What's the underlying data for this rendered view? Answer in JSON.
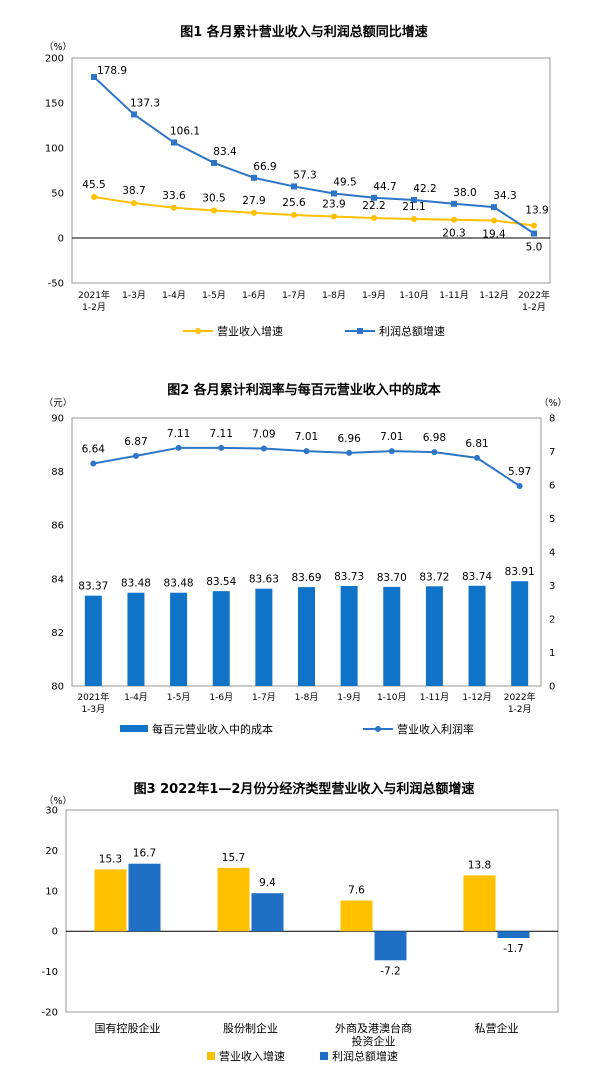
{
  "charts": [
    {
      "title": "图1  各月累计营业收入与利润总额同比增速",
      "unit_left": "（%）",
      "y_ticks": [
        "200",
        "150",
        "100",
        "50",
        "0",
        "-50"
      ],
      "categories": [
        [
          "2021年",
          "1-2月"
        ],
        [
          "1-3月"
        ],
        [
          "1-4月"
        ],
        [
          "1-5月"
        ],
        [
          "1-6月"
        ],
        [
          "1-7月"
        ],
        [
          "1-8月"
        ],
        [
          "1-9月"
        ],
        [
          "1-10月"
        ],
        [
          "1-11月"
        ],
        [
          "1-12月"
        ],
        [
          "2022年",
          "1-2月"
        ]
      ],
      "revenue_labels": [
        "45.5",
        "38.7",
        "33.6",
        "30.5",
        "27.9",
        "25.6",
        "23.9",
        "22.2",
        "21.1",
        "20.3",
        "19.4",
        "13.9"
      ],
      "profit_labels": [
        "178.9",
        "137.3",
        "106.1",
        "83.4",
        "66.9",
        "57.3",
        "49.5",
        "44.7",
        "42.2",
        "38.0",
        "34.3",
        "5.0"
      ],
      "legend": [
        "营业收入增速",
        "利润总额增速"
      ]
    },
    {
      "title": "图2  各月累计利润率与每百元营业收入中的成本",
      "unit_left": "（元）",
      "unit_right": "（%）",
      "y_ticks_left": [
        "90",
        "88",
        "86",
        "84",
        "82",
        "80"
      ],
      "y_ticks_right": [
        "8",
        "7",
        "6",
        "5",
        "4",
        "3",
        "2",
        "1",
        "0"
      ],
      "categories": [
        [
          "2021年",
          "1-3月"
        ],
        [
          "1-4月"
        ],
        [
          "1-5月"
        ],
        [
          "1-6月"
        ],
        [
          "1-7月"
        ],
        [
          "1-8月"
        ],
        [
          "1-9月"
        ],
        [
          "1-10月"
        ],
        [
          "1-11月"
        ],
        [
          "1-12月"
        ],
        [
          "2022年",
          "1-2月"
        ]
      ],
      "cost_labels": [
        "83.37",
        "83.48",
        "83.48",
        "83.54",
        "83.63",
        "83.69",
        "83.73",
        "83.70",
        "83.72",
        "83.74",
        "83.91"
      ],
      "margin_labels": [
        "6.64",
        "6.87",
        "7.11",
        "7.11",
        "7.09",
        "7.01",
        "6.96",
        "7.01",
        "6.98",
        "6.81",
        "5.97"
      ],
      "legend": [
        "每百元营业收入中的成本",
        "营业收入利润率"
      ]
    },
    {
      "title": "图3  2022年1—2月份分经济类型营业收入与利润总额增速",
      "unit_left": "（%）",
      "y_ticks": [
        "30",
        "20",
        "10",
        "0",
        "-10",
        "-20"
      ],
      "categories": [
        [
          "国有控股企业"
        ],
        [
          "股份制企业"
        ],
        [
          "外商及港澳台商",
          "投资企业"
        ],
        [
          "私营企业"
        ]
      ],
      "revenue_labels": [
        "15.3",
        "15.7",
        "7.6",
        "13.8"
      ],
      "profit_labels": [
        "16.7",
        "9.4",
        "-7.2",
        "-1.7"
      ],
      "legend": [
        "营业收入增速",
        "利润总额增速"
      ]
    }
  ],
  "colors": {
    "revenue": "#FFC000",
    "profit": "#1F6FC5",
    "bar": "#0F73C7",
    "line": "#2E75C8"
  },
  "chart_data": [
    {
      "type": "line",
      "title": "图1  各月累计营业收入与利润总额同比增速",
      "ylabel": "（%）",
      "ylim": [
        -50,
        200
      ],
      "x": [
        "2021年1-2月",
        "1-3月",
        "1-4月",
        "1-5月",
        "1-6月",
        "1-7月",
        "1-8月",
        "1-9月",
        "1-10月",
        "1-11月",
        "1-12月",
        "2022年1-2月"
      ],
      "series": [
        {
          "name": "营业收入增速",
          "values": [
            45.5,
            38.7,
            33.6,
            30.5,
            27.9,
            25.6,
            23.9,
            22.2,
            21.1,
            20.3,
            19.4,
            13.9
          ]
        },
        {
          "name": "利润总额增速",
          "values": [
            178.9,
            137.3,
            106.1,
            83.4,
            66.9,
            57.3,
            49.5,
            44.7,
            42.2,
            38.0,
            34.3,
            5.0
          ]
        }
      ],
      "legend": "bottom"
    },
    {
      "type": "bar",
      "title": "图2  各月累计利润率与每百元营业收入中的成本",
      "ylabel": "（元）",
      "ylabel_right": "（%）",
      "ylim": [
        80,
        90
      ],
      "ylim_right": [
        0,
        8
      ],
      "categories": [
        "2021年1-3月",
        "1-4月",
        "1-5月",
        "1-6月",
        "1-7月",
        "1-8月",
        "1-9月",
        "1-10月",
        "1-11月",
        "1-12月",
        "2022年1-2月"
      ],
      "series": [
        {
          "name": "每百元营业收入中的成本",
          "type": "bar",
          "axis": "left",
          "values": [
            83.37,
            83.48,
            83.48,
            83.54,
            83.63,
            83.69,
            83.73,
            83.7,
            83.72,
            83.74,
            83.91
          ]
        },
        {
          "name": "营业收入利润率",
          "type": "line",
          "axis": "right",
          "values": [
            6.64,
            6.87,
            7.11,
            7.11,
            7.09,
            7.01,
            6.96,
            7.01,
            6.98,
            6.81,
            5.97
          ]
        }
      ],
      "legend": "bottom"
    },
    {
      "type": "bar",
      "title": "图3  2022年1—2月份分经济类型营业收入与利润总额增速",
      "ylabel": "（%）",
      "ylim": [
        -20,
        30
      ],
      "categories": [
        "国有控股企业",
        "股份制企业",
        "外商及港澳台商投资企业",
        "私营企业"
      ],
      "series": [
        {
          "name": "营业收入增速",
          "values": [
            15.3,
            15.7,
            7.6,
            13.8
          ]
        },
        {
          "name": "利润总额增速",
          "values": [
            16.7,
            9.4,
            -7.2,
            -1.7
          ]
        }
      ],
      "legend": "bottom"
    }
  ]
}
